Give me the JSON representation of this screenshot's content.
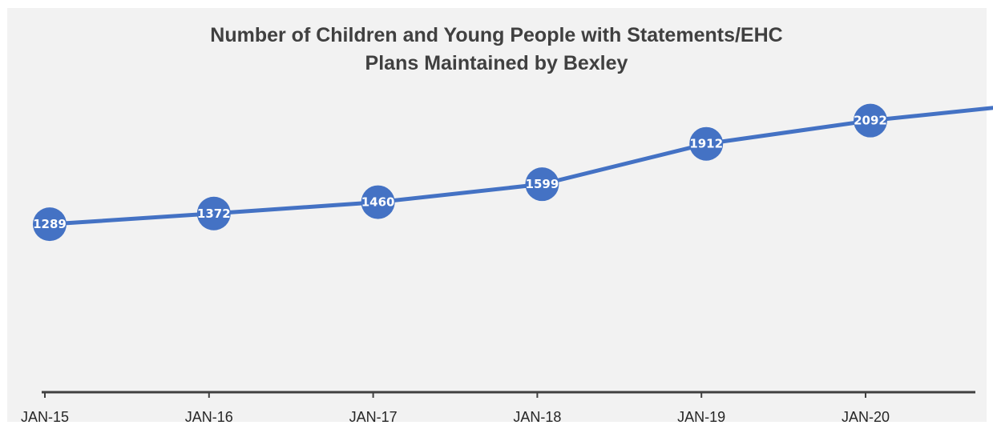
{
  "chart_data": {
    "type": "line",
    "title": "Number of Children and Young People with Statements/EHC\nPlans Maintained by Bexley",
    "categories": [
      "JAN-15",
      "JAN-16",
      "JAN-17",
      "JAN-18",
      "JAN-19",
      "JAN-20",
      ""
    ],
    "series": [
      {
        "values": [
          1289,
          1372,
          1460,
          1599,
          1912,
          2092,
          2224
        ]
      }
    ],
    "data_labels": true,
    "ylim": [
      0,
      2400
    ],
    "grid": false,
    "legend": "none",
    "colors": {
      "line": "#4472c4",
      "axis": "#404040",
      "background": "#f2f2f2",
      "title": "#404040"
    }
  }
}
